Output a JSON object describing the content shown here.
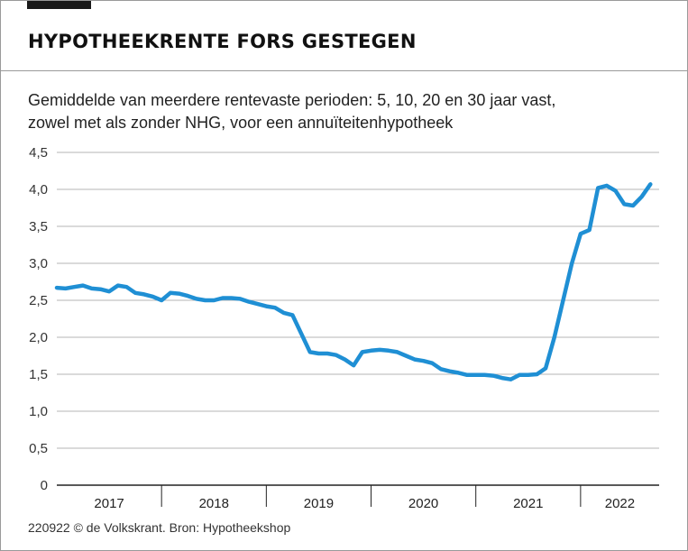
{
  "header": {
    "title": "HYPOTHEEKRENTE FORS GESTEGEN",
    "subtitle_lines": [
      "Gemiddelde van meerdere rentevaste perioden: 5, 10, 20 en 30 jaar vast,",
      "zowel met als zonder NHG, voor een annuïteitenhypotheek"
    ]
  },
  "footer": {
    "source": "220922 © de Volkskrant. Bron: Hypotheekshop"
  },
  "colors": {
    "line": "#1f8fd4",
    "grid": "#b5b5b5",
    "axis": "#222222"
  },
  "chart_data": {
    "type": "line",
    "title": "HYPOTHEEKRENTE FORS GESTEGEN",
    "subtitle": "Gemiddelde van meerdere rentevaste perioden: 5, 10, 20 en 30 jaar vast, zowel met als zonder NHG, voor een annuïteitenhypotheek",
    "xlabel": "",
    "ylabel": "",
    "xlim": [
      "2017-01-01",
      "2022-10-01"
    ],
    "ylim": [
      0,
      4.5
    ],
    "yticks": [
      0,
      0.5,
      1.0,
      1.5,
      2.0,
      2.5,
      3.0,
      3.5,
      4.0,
      4.5
    ],
    "ytick_labels": [
      "0",
      "0,5",
      "1,0",
      "1,5",
      "2,0",
      "2,5",
      "3,0",
      "3,5",
      "4,0",
      "4,5"
    ],
    "xtick_labels": [
      "2017",
      "2018",
      "2019",
      "2020",
      "2021",
      "2022"
    ],
    "grid": "horizontal",
    "series": [
      {
        "x": [
          "2017-01",
          "2017-02",
          "2017-03",
          "2017-04",
          "2017-05",
          "2017-06",
          "2017-07",
          "2017-08",
          "2017-09",
          "2017-10",
          "2017-11",
          "2017-12",
          "2018-01",
          "2018-02",
          "2018-03",
          "2018-04",
          "2018-05",
          "2018-06",
          "2018-07",
          "2018-08",
          "2018-09",
          "2018-10",
          "2018-11",
          "2018-12",
          "2019-01",
          "2019-02",
          "2019-03",
          "2019-04",
          "2019-05",
          "2019-06",
          "2019-07",
          "2019-08",
          "2019-09",
          "2019-10",
          "2019-11",
          "2019-12",
          "2020-01",
          "2020-02",
          "2020-03",
          "2020-04",
          "2020-05",
          "2020-06",
          "2020-07",
          "2020-08",
          "2020-09",
          "2020-10",
          "2020-11",
          "2020-12",
          "2021-01",
          "2021-02",
          "2021-03",
          "2021-04",
          "2021-05",
          "2021-06",
          "2021-07",
          "2021-08",
          "2021-09",
          "2021-10",
          "2021-11",
          "2021-12",
          "2022-01",
          "2022-02",
          "2022-03",
          "2022-04",
          "2022-05",
          "2022-06",
          "2022-07",
          "2022-08",
          "2022-09"
        ],
        "values": [
          2.67,
          2.66,
          2.68,
          2.7,
          2.66,
          2.65,
          2.62,
          2.7,
          2.68,
          2.6,
          2.58,
          2.55,
          2.5,
          2.6,
          2.59,
          2.56,
          2.52,
          2.5,
          2.5,
          2.53,
          2.53,
          2.52,
          2.48,
          2.45,
          2.42,
          2.4,
          2.33,
          2.3,
          2.05,
          1.8,
          1.78,
          1.78,
          1.76,
          1.7,
          1.62,
          1.8,
          1.82,
          1.83,
          1.82,
          1.8,
          1.75,
          1.7,
          1.68,
          1.65,
          1.57,
          1.54,
          1.52,
          1.49,
          1.49,
          1.49,
          1.48,
          1.45,
          1.43,
          1.49,
          1.49,
          1.5,
          1.58,
          2.0,
          2.5,
          3.0,
          3.4,
          3.45,
          4.02,
          4.05,
          3.98,
          3.8,
          3.78,
          3.9,
          4.07
        ]
      }
    ]
  }
}
